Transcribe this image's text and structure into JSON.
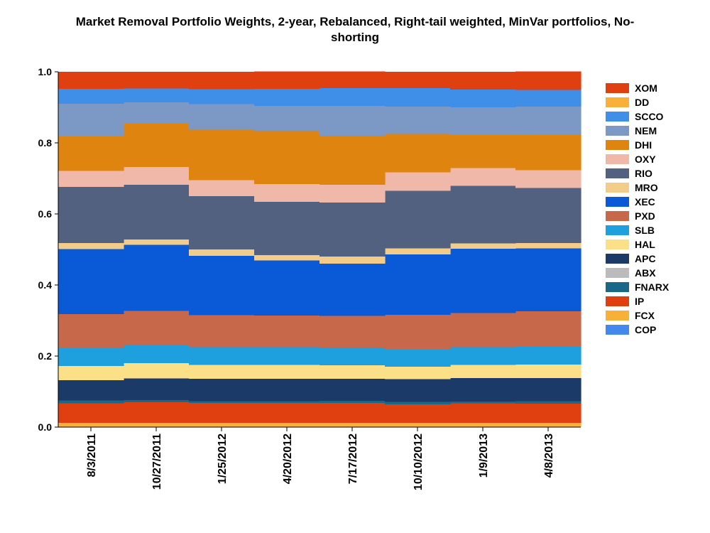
{
  "chart_data": {
    "type": "area",
    "stacked": true,
    "step": true,
    "title_line1": "Market Removal Portfolio Weights, 2-year, Rebalanced, Right-tail weighted, MinVar portfolios, No-",
    "title_line2": "shorting",
    "xlabel": "",
    "ylabel": "",
    "ylim": [
      0,
      1
    ],
    "yticks": [
      "0.0",
      "0.2",
      "0.4",
      "0.6",
      "0.8",
      "1.0"
    ],
    "x": [
      "8/3/2011",
      "10/27/2011",
      "1/25/2012",
      "4/20/2012",
      "7/17/2012",
      "10/10/2012",
      "1/9/2013",
      "4/8/2013"
    ],
    "grid": false,
    "legend_position": "right",
    "series": [
      {
        "name": "COP",
        "color": "#4488ee",
        "values": [
          0.0,
          0.0,
          0.0,
          0.0,
          0.0,
          0.0,
          0.0,
          0.0
        ]
      },
      {
        "name": "FCX",
        "color": "#f8b038",
        "values": [
          0.012,
          0.012,
          0.012,
          0.012,
          0.012,
          0.012,
          0.012,
          0.012
        ]
      },
      {
        "name": "IP",
        "color": "#e04010",
        "values": [
          0.055,
          0.058,
          0.056,
          0.056,
          0.056,
          0.052,
          0.055,
          0.054
        ]
      },
      {
        "name": "FNARX",
        "color": "#1a6888",
        "values": [
          0.008,
          0.006,
          0.005,
          0.005,
          0.006,
          0.007,
          0.005,
          0.007
        ]
      },
      {
        "name": "ABX",
        "color": "#bbbbbb",
        "values": [
          0.0,
          0.0,
          0.0,
          0.0,
          0.0,
          0.0,
          0.0,
          0.0
        ]
      },
      {
        "name": "APC",
        "color": "#1c3a68",
        "values": [
          0.057,
          0.061,
          0.063,
          0.063,
          0.062,
          0.064,
          0.066,
          0.065
        ]
      },
      {
        "name": "HAL",
        "color": "#fce088",
        "values": [
          0.04,
          0.043,
          0.039,
          0.039,
          0.038,
          0.035,
          0.037,
          0.038
        ]
      },
      {
        "name": "SLB",
        "color": "#1da0dd",
        "values": [
          0.05,
          0.05,
          0.05,
          0.05,
          0.05,
          0.05,
          0.05,
          0.052
        ]
      },
      {
        "name": "PXD",
        "color": "#c8684a",
        "values": [
          0.096,
          0.097,
          0.09,
          0.089,
          0.089,
          0.096,
          0.096,
          0.098
        ]
      },
      {
        "name": "XEC",
        "color": "#0a5ad8",
        "values": [
          0.183,
          0.186,
          0.167,
          0.155,
          0.147,
          0.17,
          0.181,
          0.177
        ]
      },
      {
        "name": "MRO",
        "color": "#f2cc88",
        "values": [
          0.017,
          0.015,
          0.018,
          0.015,
          0.02,
          0.017,
          0.015,
          0.015
        ]
      },
      {
        "name": "RIO",
        "color": "#52617f",
        "values": [
          0.158,
          0.154,
          0.15,
          0.15,
          0.152,
          0.162,
          0.162,
          0.155
        ]
      },
      {
        "name": "OXY",
        "color": "#f0b8a8",
        "values": [
          0.045,
          0.05,
          0.045,
          0.05,
          0.05,
          0.052,
          0.05,
          0.05
        ]
      },
      {
        "name": "DHI",
        "color": "#e08410",
        "values": [
          0.097,
          0.123,
          0.142,
          0.149,
          0.138,
          0.108,
          0.093,
          0.1
        ]
      },
      {
        "name": "NEM",
        "color": "#7c98c4",
        "values": [
          0.092,
          0.059,
          0.072,
          0.071,
          0.084,
          0.077,
          0.078,
          0.079
        ]
      },
      {
        "name": "SCCO",
        "color": "#3f8ee8",
        "values": [
          0.042,
          0.039,
          0.042,
          0.048,
          0.05,
          0.052,
          0.05,
          0.047
        ]
      },
      {
        "name": "DD",
        "color": "#f8b038",
        "values": [
          0.0,
          0.0,
          0.0,
          0.0,
          0.0,
          0.0,
          0.0,
          0.0
        ]
      },
      {
        "name": "XOM",
        "color": "#e04010",
        "values": [
          0.048,
          0.047,
          0.049,
          0.049,
          0.047,
          0.046,
          0.05,
          0.052
        ]
      }
    ]
  }
}
